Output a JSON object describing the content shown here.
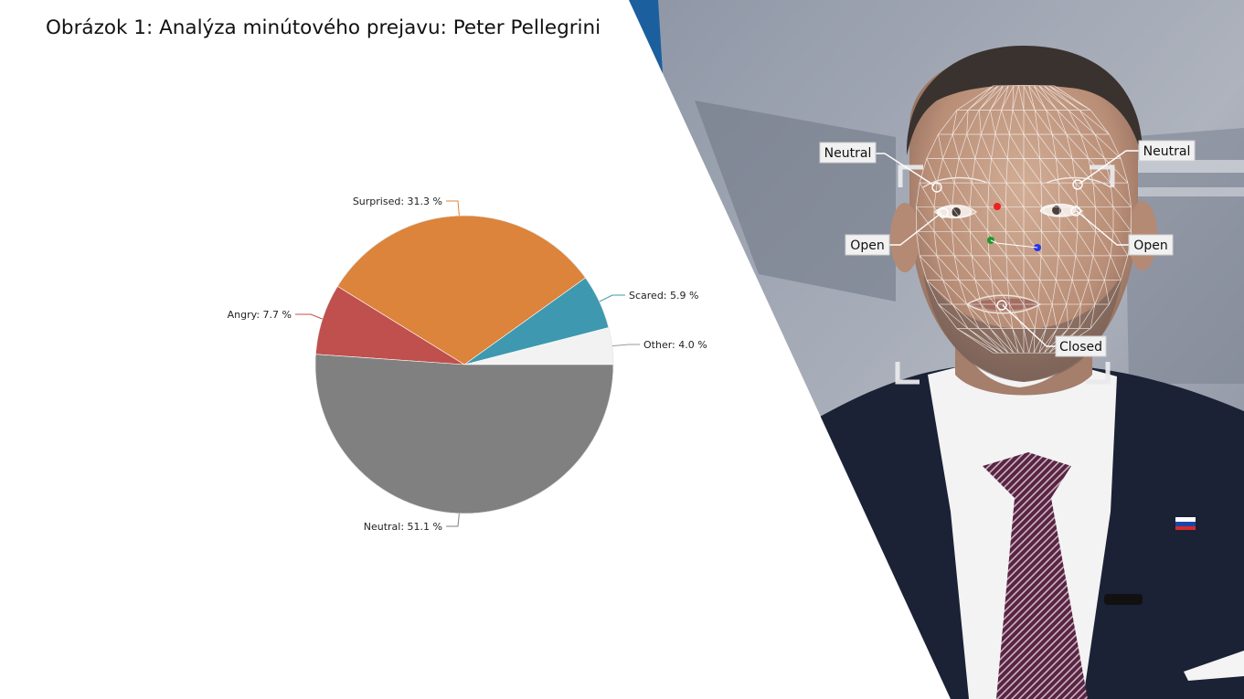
{
  "title": "Obrázok 1: Analýza minútového prejavu: Peter Pellegrini",
  "chart_data": {
    "type": "pie",
    "title": "",
    "start_angle_deg": 0,
    "direction": "counterclockwise",
    "slices": [
      {
        "label": "Other",
        "value": 4.0,
        "text": "Other: 4.0 %",
        "color": "#f2f2f2"
      },
      {
        "label": "Scared",
        "value": 5.9,
        "text": "Scared: 5.9 %",
        "color": "#3e98b0"
      },
      {
        "label": "Surprised",
        "value": 31.3,
        "text": "Surprised: 31.3 %",
        "color": "#dc843b"
      },
      {
        "label": "Angry",
        "value": 7.7,
        "text": "Angry: 7.7 %",
        "color": "#c0504d"
      },
      {
        "label": "Neutral",
        "value": 51.1,
        "text": "Neutral: 51.1 %",
        "color": "#808080"
      }
    ]
  },
  "face_panel": {
    "tags": {
      "left_brow": "Neutral",
      "right_brow": "Neutral",
      "left_eye": "Open",
      "right_eye": "Open",
      "mouth": "Closed"
    },
    "colors": {
      "banner": "#1b5f9e",
      "suit": "#1b2236",
      "shirt": "#f3f3f4",
      "tie": "#5a2442",
      "skin": "#c59c85",
      "hair": "#3a322f",
      "backdrop": "#9aa1ae",
      "point_red": "#ee2222",
      "point_green": "#1e9a2a",
      "point_blue": "#2a35e8"
    }
  }
}
